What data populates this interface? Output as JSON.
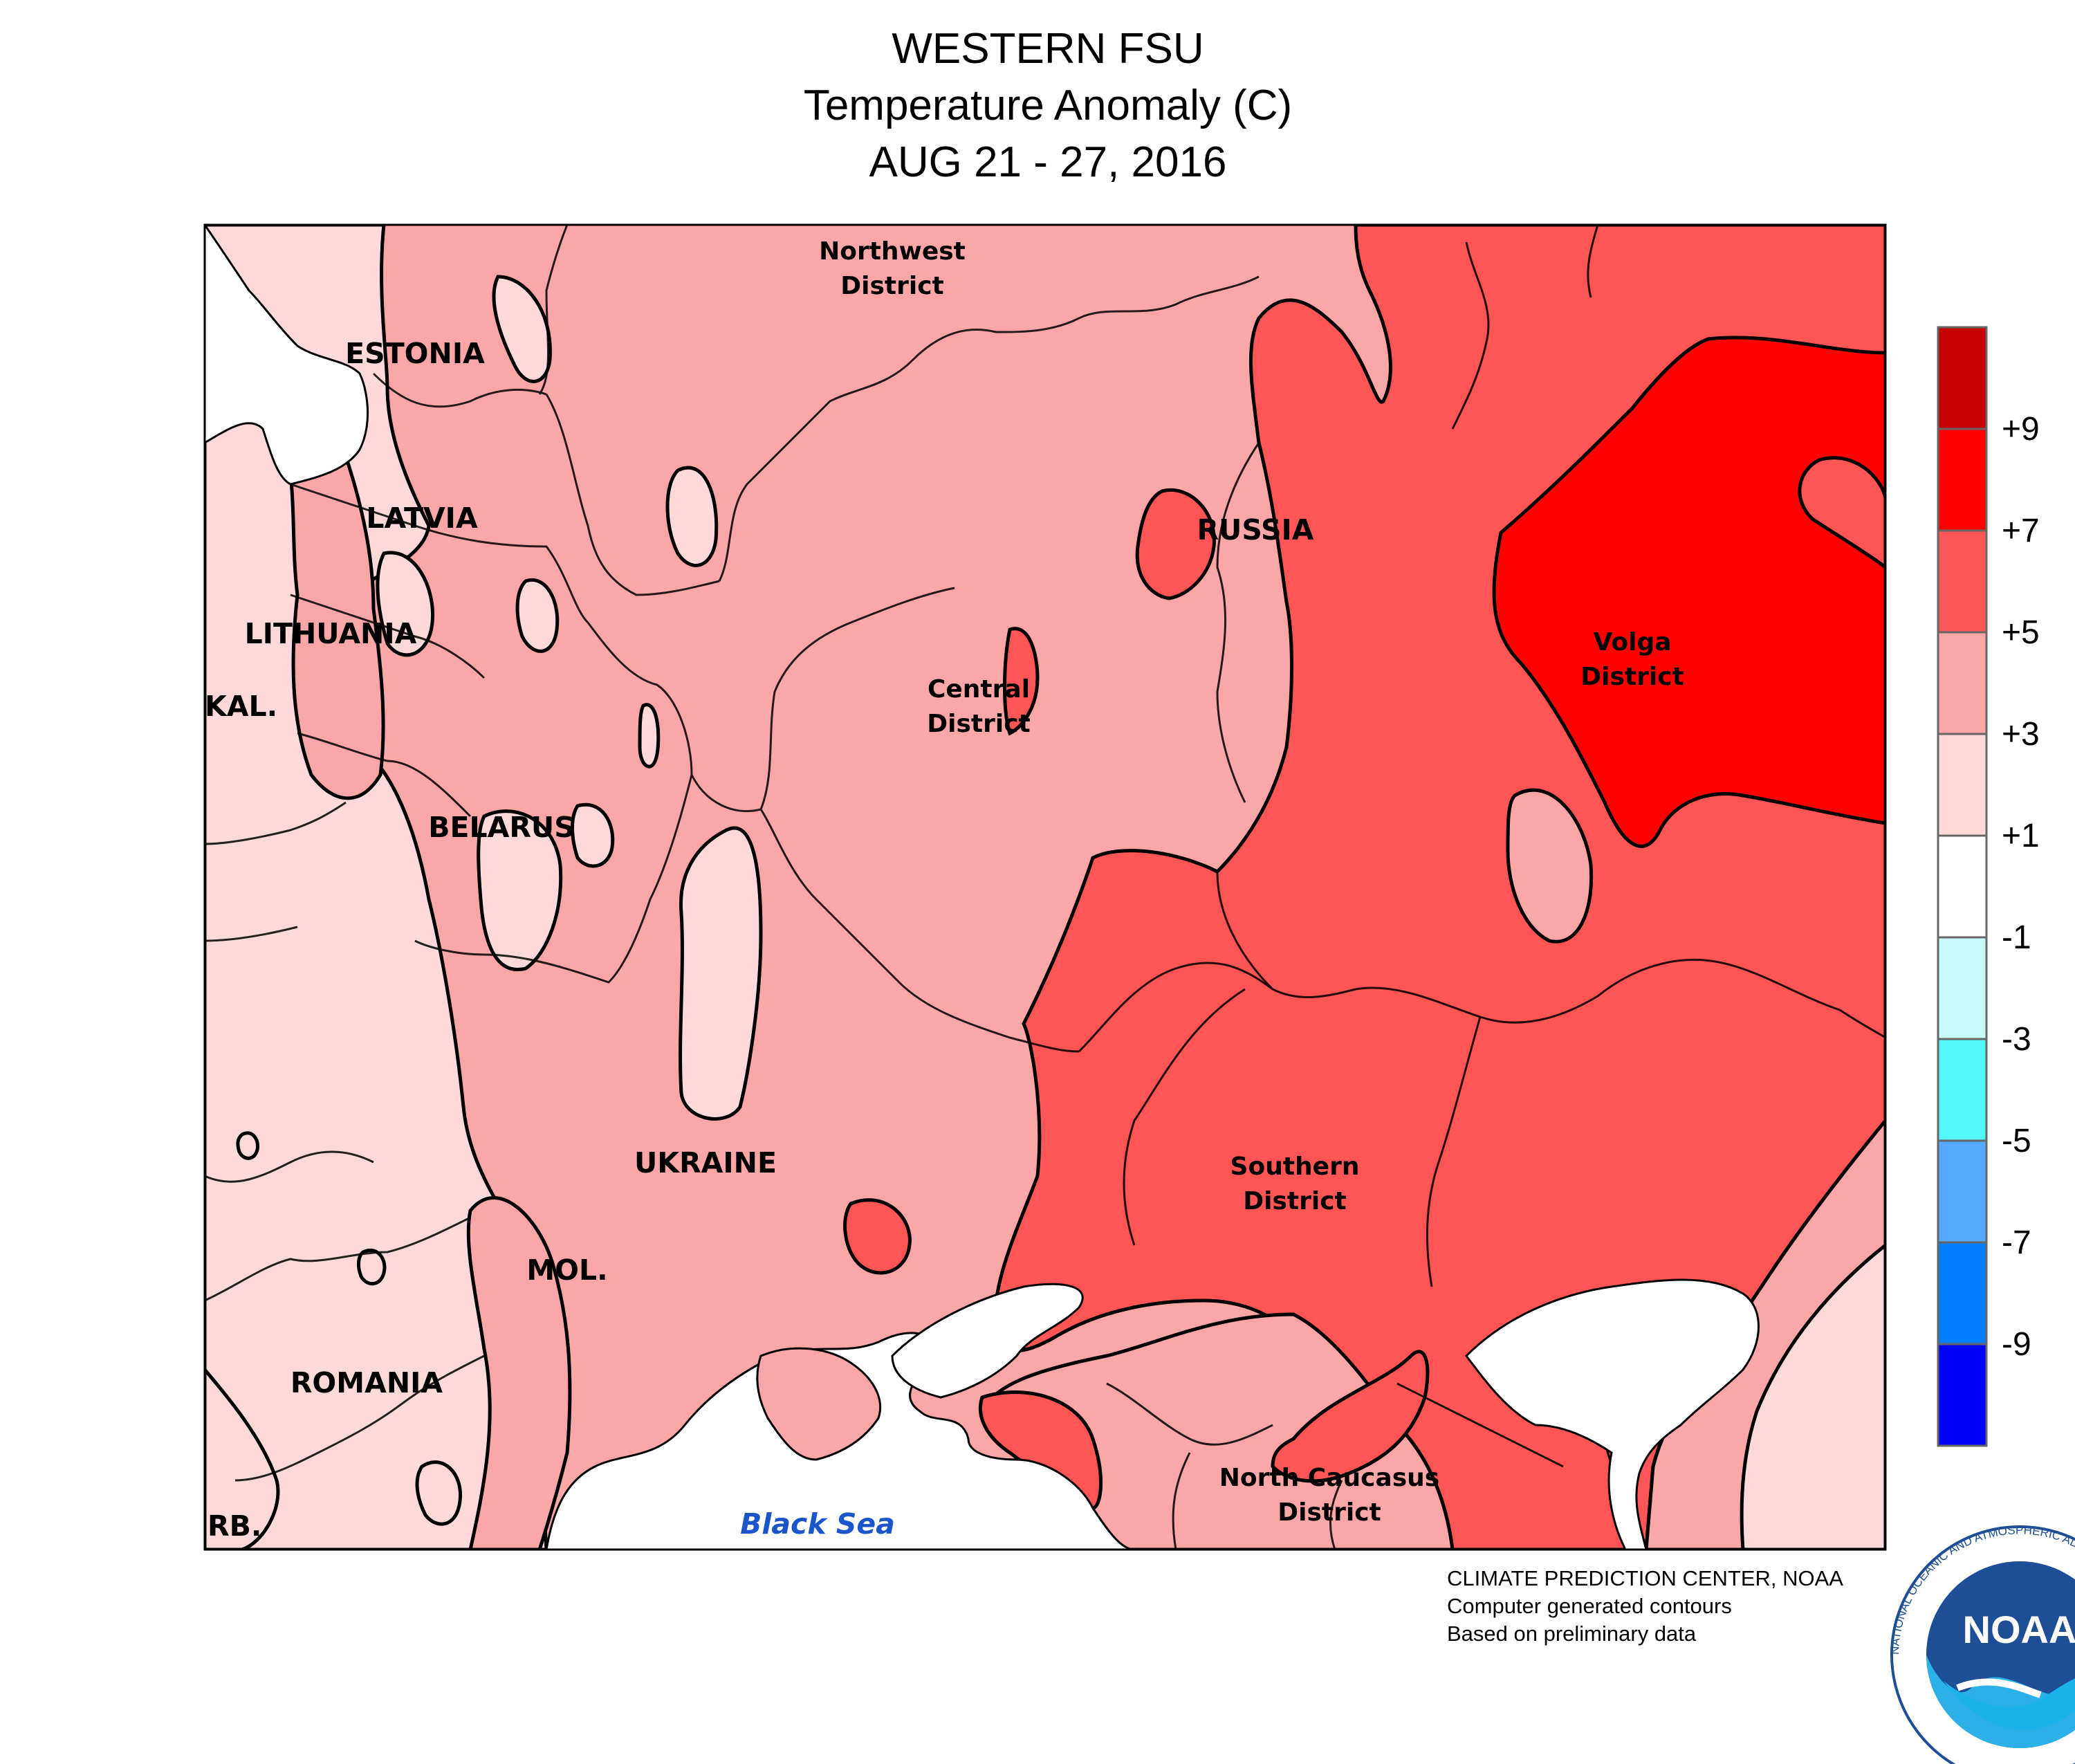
{
  "title": {
    "line1": "WESTERN FSU",
    "line2": "Temperature Anomaly (C)",
    "line3": "AUG 21 - 27, 2016"
  },
  "map_labels": {
    "northwest": "Northwest",
    "district": "District",
    "estonia": "ESTONIA",
    "latvia": "LATVIA",
    "lithuania": "LITHUANIA",
    "kal": "KAL.",
    "belarus": "BELARUS",
    "russia": "RUSSIA",
    "central": "Central",
    "volga": "Volga",
    "ukraine": "UKRAINE",
    "southern": "Southern",
    "mol": "MOL.",
    "romania": "ROMANIA",
    "north_caucasus": "North Caucasus",
    "serb": "RB.",
    "black_sea": "Black Sea"
  },
  "legend": {
    "labels": [
      "+9",
      "+7",
      "+5",
      "+3",
      "+1",
      "-1",
      "-3",
      "-5",
      "-7",
      "-9"
    ],
    "colors": [
      "#c80000",
      "#ff0000",
      "#ff5555",
      "#fba7a7",
      "#fdd9d9",
      "#ffffff",
      "#c8fafa",
      "#55f8f8",
      "#55aaff",
      "#0080ff",
      "#0000ff"
    ]
  },
  "anomaly_colors": {
    "plus1_to_plus3": "#fdd9d9",
    "plus3_to_plus5": "#fba7a7",
    "plus5_to_plus7": "#ff5555",
    "plus7_to_plus9": "#ff0000",
    "sea": "#ffffff"
  },
  "credit": {
    "line1": "CLIMATE PREDICTION CENTER, NOAA",
    "line2": "Computer generated contours",
    "line3": "Based on preliminary data"
  },
  "logo": {
    "text": "NOAA",
    "ring_text": "NATIONAL OCEANIC AND ATMOSPHERIC ADMINISTRATION · U.S. DEPARTMENT OF COMMERCE"
  }
}
